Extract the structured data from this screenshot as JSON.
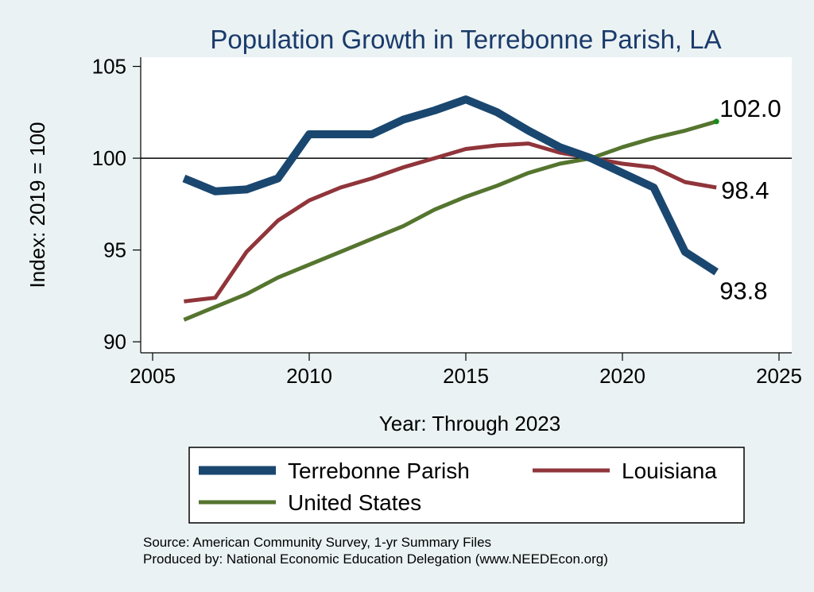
{
  "chart_data": {
    "type": "line",
    "title": "Population Growth in Terrebonne Parish, LA",
    "xlabel": "Year: Through 2023",
    "ylabel": "Index: 2019 = 100",
    "xlim": [
      2005,
      2025
    ],
    "ylim": [
      89.4,
      105.5
    ],
    "xticks": [
      2005,
      2010,
      2015,
      2020,
      2025
    ],
    "yticks": [
      90,
      95,
      100,
      105
    ],
    "reference_line": 100,
    "series": [
      {
        "name": "Terrebonne Parish",
        "color": "#1a476f",
        "x": [
          2006,
          2007,
          2008,
          2009,
          2010,
          2011,
          2012,
          2013,
          2014,
          2015,
          2016,
          2017,
          2018,
          2019,
          2020,
          2021,
          2022,
          2023
        ],
        "values": [
          98.9,
          98.2,
          98.3,
          98.9,
          101.3,
          101.3,
          101.3,
          102.1,
          102.6,
          103.2,
          102.5,
          101.5,
          100.6,
          100.0,
          99.2,
          98.4,
          94.9,
          93.8
        ],
        "end_label": "93.8"
      },
      {
        "name": "Louisiana",
        "color": "#90353b",
        "x": [
          2006,
          2007,
          2008,
          2009,
          2010,
          2011,
          2012,
          2013,
          2014,
          2015,
          2016,
          2017,
          2018,
          2019,
          2020,
          2021,
          2022,
          2023
        ],
        "values": [
          92.2,
          92.4,
          94.9,
          96.6,
          97.7,
          98.4,
          98.9,
          99.5,
          100.0,
          100.5,
          100.7,
          100.8,
          100.3,
          100.0,
          99.7,
          99.5,
          98.7,
          98.4
        ],
        "end_label": "98.4"
      },
      {
        "name": "United States",
        "color": "#55752f",
        "x": [
          2006,
          2007,
          2008,
          2009,
          2010,
          2011,
          2012,
          2013,
          2014,
          2015,
          2016,
          2017,
          2018,
          2019,
          2020,
          2021,
          2022,
          2023
        ],
        "values": [
          91.2,
          91.9,
          92.6,
          93.5,
          94.2,
          94.9,
          95.6,
          96.3,
          97.2,
          97.9,
          98.5,
          99.2,
          99.7,
          100.0,
          100.6,
          101.1,
          101.5,
          102.0
        ],
        "end_label": "102.0"
      }
    ],
    "legend": [
      "Terrebonne Parish",
      "Louisiana",
      "United States"
    ]
  },
  "footer": {
    "source": "Source: American Community Survey, 1-yr Summary Files",
    "produced_by": "Produced by: National Economic Education Delegation (www.NEEDEcon.org)"
  }
}
